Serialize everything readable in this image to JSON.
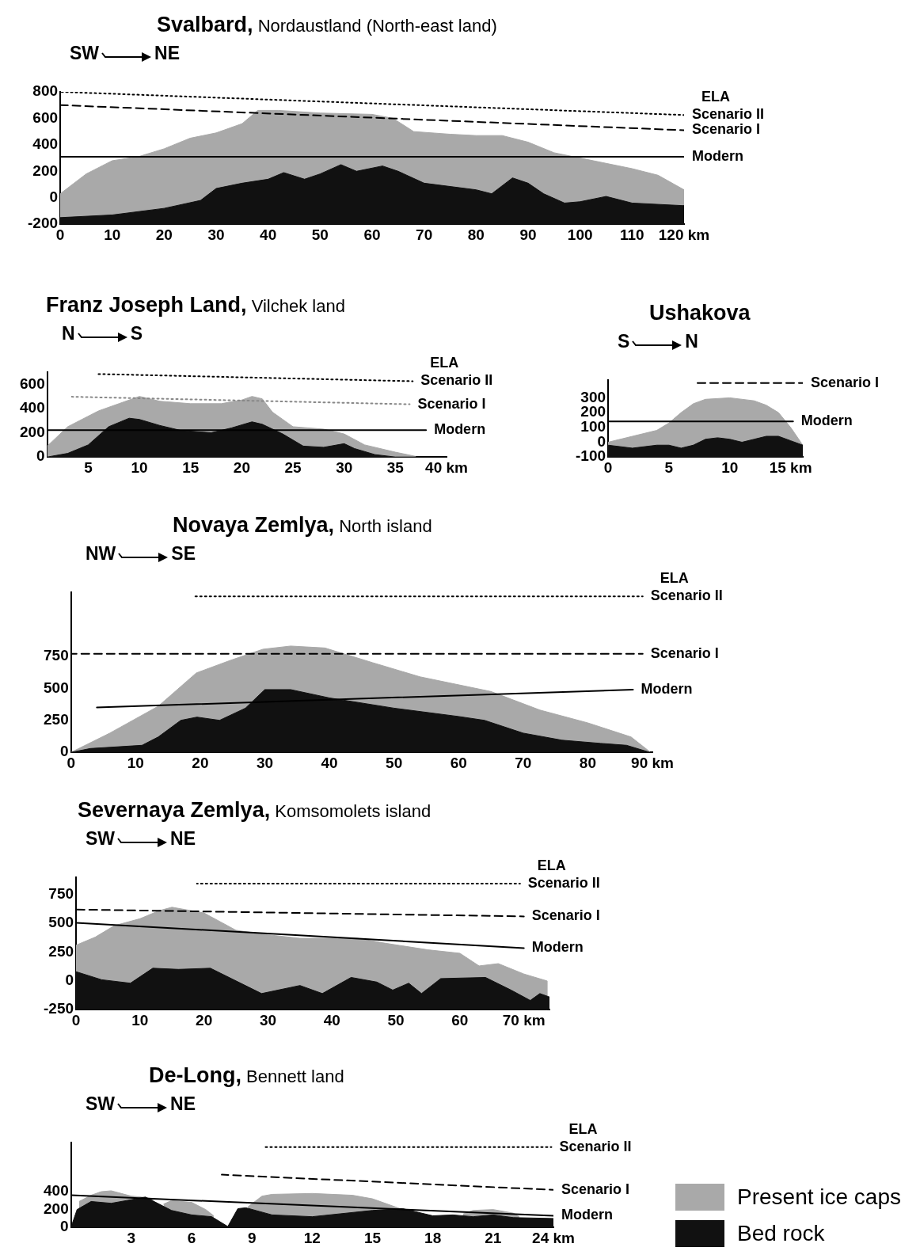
{
  "chart_data": [
    {
      "type": "area",
      "title": "Svalbard,",
      "subtitle": "Nordaustland (North-east land)",
      "annotations": [
        "SW",
        "NE",
        "ELA"
      ],
      "xlim": [
        0,
        120
      ],
      "xticks": [
        0,
        10,
        20,
        30,
        40,
        50,
        60,
        70,
        80,
        90,
        100,
        110,
        {
          "value": 120,
          "label": "120 km"
        }
      ],
      "ylim": [
        -200,
        800
      ],
      "yticks": [
        -200,
        0,
        200,
        400,
        600,
        800
      ],
      "series": [
        {
          "type": "area",
          "color": "#a9a9a9",
          "x": [
            0,
            0,
            5,
            10,
            15,
            20,
            25,
            30,
            35,
            38,
            42,
            50,
            60,
            64,
            68,
            75,
            80,
            85,
            90,
            95,
            100,
            105,
            110,
            115,
            120,
            120
          ],
          "values": [
            -200,
            30,
            180,
            280,
            310,
            370,
            450,
            490,
            560,
            660,
            660,
            640,
            630,
            600,
            500,
            480,
            470,
            470,
            420,
            340,
            300,
            260,
            220,
            170,
            60,
            -200
          ]
        },
        {
          "type": "area",
          "color": "#111111",
          "x": [
            0,
            0,
            10,
            20,
            27,
            30,
            35,
            40,
            43,
            47,
            50,
            54,
            57,
            62,
            65,
            70,
            80,
            83,
            87,
            90,
            93,
            97,
            100,
            105,
            110,
            120,
            120
          ],
          "values": [
            -200,
            -150,
            -130,
            -80,
            -20,
            70,
            110,
            140,
            190,
            140,
            180,
            250,
            200,
            240,
            200,
            110,
            60,
            30,
            150,
            110,
            30,
            -40,
            -30,
            10,
            -40,
            -60,
            -200
          ]
        },
        {
          "type": "line",
          "name": "Scenario II",
          "color": "#000000",
          "line_style": "dotted",
          "x": [
            0,
            120
          ],
          "values": [
            800,
            625
          ]
        },
        {
          "type": "line",
          "name": "Scenario I",
          "color": "#000000",
          "line_style": "dashed",
          "x": [
            0,
            120
          ],
          "values": [
            700,
            510
          ]
        },
        {
          "type": "line",
          "name": "Modern",
          "color": "#000000",
          "line_style": "solid",
          "x": [
            0,
            120
          ],
          "values": [
            310,
            310
          ]
        }
      ]
    },
    {
      "type": "area",
      "title": "Franz Joseph Land,",
      "subtitle": "Vilchek land",
      "annotations": [
        "N",
        "S",
        "ELA"
      ],
      "xlim": [
        1,
        40
      ],
      "xticks": [
        5,
        10,
        15,
        20,
        25,
        30,
        35,
        {
          "value": 40,
          "label": "40 km"
        }
      ],
      "ylim": [
        0,
        700
      ],
      "yticks": [
        0,
        200,
        400,
        600
      ],
      "series": [
        {
          "type": "area",
          "color": "#a9a9a9",
          "x": [
            1,
            3,
            6,
            8,
            10,
            12,
            15,
            18,
            20,
            21,
            22,
            23,
            25,
            28,
            30,
            32,
            35,
            37
          ],
          "values": [
            90,
            250,
            380,
            440,
            500,
            460,
            440,
            440,
            470,
            500,
            480,
            370,
            250,
            230,
            190,
            100,
            40,
            5
          ]
        },
        {
          "type": "area",
          "color": "#111111",
          "x": [
            1,
            3,
            5,
            7,
            9,
            10,
            12,
            14,
            17,
            19,
            21,
            22,
            24,
            26,
            28,
            30,
            31,
            33,
            35,
            37.5
          ],
          "values": [
            0,
            30,
            100,
            250,
            320,
            310,
            260,
            220,
            200,
            240,
            290,
            270,
            190,
            90,
            80,
            110,
            70,
            20,
            0,
            0
          ]
        },
        {
          "type": "line",
          "name": "Scenario II",
          "color": "#000000",
          "line_style": "dotted",
          "x": [
            5.7,
            36.7
          ],
          "values": [
            685,
            625
          ]
        },
        {
          "type": "line",
          "name": "Scenario I",
          "color": "#888888",
          "line_style": "dotted",
          "x": [
            3.4,
            36.4
          ],
          "values": [
            497,
            435
          ]
        },
        {
          "type": "line",
          "name": "Modern",
          "color": "#000000",
          "line_style": "solid",
          "x": [
            1,
            38
          ],
          "values": [
            222,
            222
          ]
        }
      ]
    },
    {
      "type": "area",
      "title": "Ushakova",
      "annotations": [
        "S",
        "N"
      ],
      "xlim": [
        0,
        16
      ],
      "xticks": [
        0,
        5,
        10,
        {
          "value": 15,
          "label": "15 km"
        }
      ],
      "ylim": [
        -100,
        420
      ],
      "yticks": [
        -100,
        0,
        100,
        200,
        300
      ],
      "series": [
        {
          "type": "area",
          "color": "#a9a9a9",
          "x": [
            0,
            0,
            2,
            4,
            5,
            6,
            7,
            8,
            10,
            12,
            13,
            14,
            15,
            16,
            16
          ],
          "values": [
            -100,
            0,
            40,
            80,
            130,
            200,
            260,
            290,
            300,
            280,
            250,
            200,
            100,
            -20,
            -100
          ]
        },
        {
          "type": "area",
          "color": "#111111",
          "x": [
            0,
            0,
            2,
            4,
            5,
            6,
            7,
            8,
            9,
            10,
            11,
            12,
            13,
            14,
            15,
            16,
            16
          ],
          "values": [
            -100,
            -20,
            -40,
            -20,
            -20,
            -40,
            -20,
            20,
            30,
            20,
            0,
            20,
            40,
            40,
            10,
            -20,
            -100
          ]
        },
        {
          "type": "line",
          "name": "Scenario I",
          "color": "#000000",
          "line_style": "dashed",
          "x": [
            7.1,
            16
          ],
          "values": [
            400,
            400
          ]
        },
        {
          "type": "line",
          "name": "Modern",
          "color": "#000000",
          "line_style": "solid",
          "x": [
            0,
            15.2
          ],
          "values": [
            140,
            140
          ]
        }
      ]
    },
    {
      "type": "area",
      "title": "Novaya Zemlya,",
      "subtitle": "North island",
      "annotations": [
        "NW",
        "SE",
        "ELA"
      ],
      "xlim": [
        0,
        90
      ],
      "xticks": [
        0,
        10,
        20,
        30,
        40,
        50,
        60,
        70,
        80,
        {
          "value": 90,
          "label": "90 km"
        }
      ],
      "ylim": [
        0,
        1250
      ],
      "yticks": [
        0,
        250,
        500,
        750
      ],
      "series": [
        {
          "type": "area",
          "color": "#a9a9a9",
          "x": [
            0,
            6,
            13.5,
            19.4,
            24.6,
            29.7,
            34,
            39.3,
            46.7,
            54,
            65,
            72.6,
            80,
            86.7,
            89.6
          ],
          "values": [
            0,
            150,
            360,
            620,
            717,
            805,
            830,
            815,
            700,
            590,
            475,
            330,
            230,
            120,
            5
          ]
        },
        {
          "type": "area",
          "color": "#111111",
          "x": [
            0,
            3,
            11,
            13.5,
            17,
            19.5,
            23,
            27,
            30,
            34,
            40,
            50,
            60,
            64,
            70,
            76,
            82,
            86,
            89.6
          ],
          "values": [
            0,
            30,
            55,
            120,
            250,
            275,
            250,
            345,
            490,
            490,
            425,
            345,
            280,
            250,
            150,
            95,
            70,
            55,
            0
          ]
        },
        {
          "type": "line",
          "name": "Scenario II",
          "color": "#000000",
          "line_style": "dotted",
          "x": [
            19,
            88.5
          ],
          "values": [
            1217,
            1217
          ]
        },
        {
          "type": "line",
          "name": "Scenario I",
          "color": "#000000",
          "line_style": "dashed",
          "x": [
            0,
            88.5
          ],
          "values": [
            770,
            770
          ]
        },
        {
          "type": "line",
          "name": "Modern",
          "color": "#000000",
          "line_style": "solid",
          "x": [
            4,
            87
          ],
          "values": [
            350,
            490
          ]
        }
      ]
    },
    {
      "type": "area",
      "title": "Severnaya Zemlya,",
      "subtitle": "Komsomolets island",
      "annotations": [
        "SW",
        "NE",
        "ELA"
      ],
      "xlim": [
        0,
        74
      ],
      "xticks": [
        0,
        10,
        20,
        30,
        40,
        50,
        60,
        {
          "value": 70,
          "label": "70 km"
        }
      ],
      "ylim": [
        -250,
        900
      ],
      "yticks": [
        -250,
        0,
        250,
        500,
        750
      ],
      "series": [
        {
          "type": "area",
          "color": "#a9a9a9",
          "x": [
            0,
            0,
            3,
            6,
            10,
            13,
            15,
            17,
            20,
            23,
            25,
            30,
            35,
            40,
            44,
            48,
            55,
            60,
            63,
            66,
            70,
            73.6,
            73.6
          ],
          "values": [
            -250,
            310,
            380,
            480,
            540,
            610,
            640,
            620,
            590,
            500,
            440,
            400,
            370,
            370,
            370,
            330,
            270,
            240,
            130,
            150,
            60,
            0,
            -250
          ]
        },
        {
          "type": "area",
          "color": "#111111",
          "x": [
            0,
            0,
            4,
            8.5,
            12,
            16,
            21,
            25,
            29,
            35,
            38.5,
            43,
            47,
            49.5,
            52,
            54,
            57,
            64,
            68,
            71,
            72.5,
            74,
            74
          ],
          "values": [
            -250,
            80,
            10,
            -20,
            110,
            100,
            110,
            0,
            -110,
            -40,
            -110,
            30,
            -10,
            -80,
            -20,
            -110,
            20,
            30,
            -80,
            -170,
            -110,
            -140,
            -250
          ]
        },
        {
          "type": "line",
          "name": "Scenario II",
          "color": "#000000",
          "line_style": "dotted",
          "x": [
            18.9,
            69.4
          ],
          "values": [
            845,
            845
          ]
        },
        {
          "type": "line",
          "name": "Scenario I",
          "color": "#000000",
          "line_style": "dashed",
          "x": [
            0,
            70
          ],
          "values": [
            620,
            560
          ]
        },
        {
          "type": "line",
          "name": "Modern",
          "color": "#000000",
          "line_style": "solid",
          "x": [
            0,
            70
          ],
          "values": [
            505,
            285
          ]
        }
      ]
    },
    {
      "type": "area",
      "title": "De-Long,",
      "subtitle": "Bennett land",
      "annotations": [
        "SW",
        "NE",
        "ELA"
      ],
      "legend": "right",
      "xlim": [
        0,
        24
      ],
      "xticks": [
        3,
        6,
        9,
        12,
        15,
        18,
        21,
        {
          "value": 24,
          "label": "24 km"
        }
      ],
      "ylim": [
        0,
        950
      ],
      "yticks": [
        0,
        200,
        400
      ],
      "series": [
        {
          "type": "area",
          "name": "Present ice caps",
          "color": "#a9a9a9",
          "x": [
            0.4,
            1,
            1.5,
            2,
            2.5,
            3,
            3.5,
            4.1,
            4.3,
            4.6,
            5,
            6,
            6.7,
            7.1,
            7.5,
            8.8,
            9.5,
            10,
            12,
            14,
            15,
            16,
            16.5,
            17,
            19.5,
            20,
            21,
            22,
            22.3
          ],
          "values": [
            290,
            360,
            400,
            410,
            380,
            350,
            340,
            320,
            null,
            260,
            300,
            280,
            200,
            130,
            null,
            230,
            350,
            370,
            380,
            360,
            320,
            240,
            200,
            null,
            150,
            190,
            200,
            160,
            120
          ]
        },
        {
          "type": "area",
          "name": "Bed rock",
          "color": "#111111",
          "x": [
            0,
            0.3,
            1,
            2,
            3,
            3.7,
            5,
            6,
            7,
            7.8,
            8.3,
            8.7,
            10,
            12,
            15,
            16.5,
            18,
            19,
            20,
            21,
            22,
            24
          ],
          "values": [
            0,
            200,
            290,
            270,
            310,
            340,
            190,
            140,
            120,
            10,
            210,
            220,
            140,
            120,
            190,
            210,
            130,
            140,
            120,
            140,
            110,
            100
          ]
        },
        {
          "type": "line",
          "name": "Scenario II",
          "color": "#000000",
          "line_style": "dotted",
          "x": [
            9.6,
            23.9
          ],
          "values": [
            900,
            900
          ]
        },
        {
          "type": "line",
          "name": "Scenario I",
          "color": "#000000",
          "line_style": "dashed",
          "x": [
            7.5,
            24
          ],
          "values": [
            590,
            420
          ]
        },
        {
          "type": "line",
          "name": "Modern",
          "color": "#000000",
          "line_style": "solid",
          "x": [
            0,
            24
          ],
          "values": [
            360,
            130
          ]
        }
      ]
    }
  ]
}
